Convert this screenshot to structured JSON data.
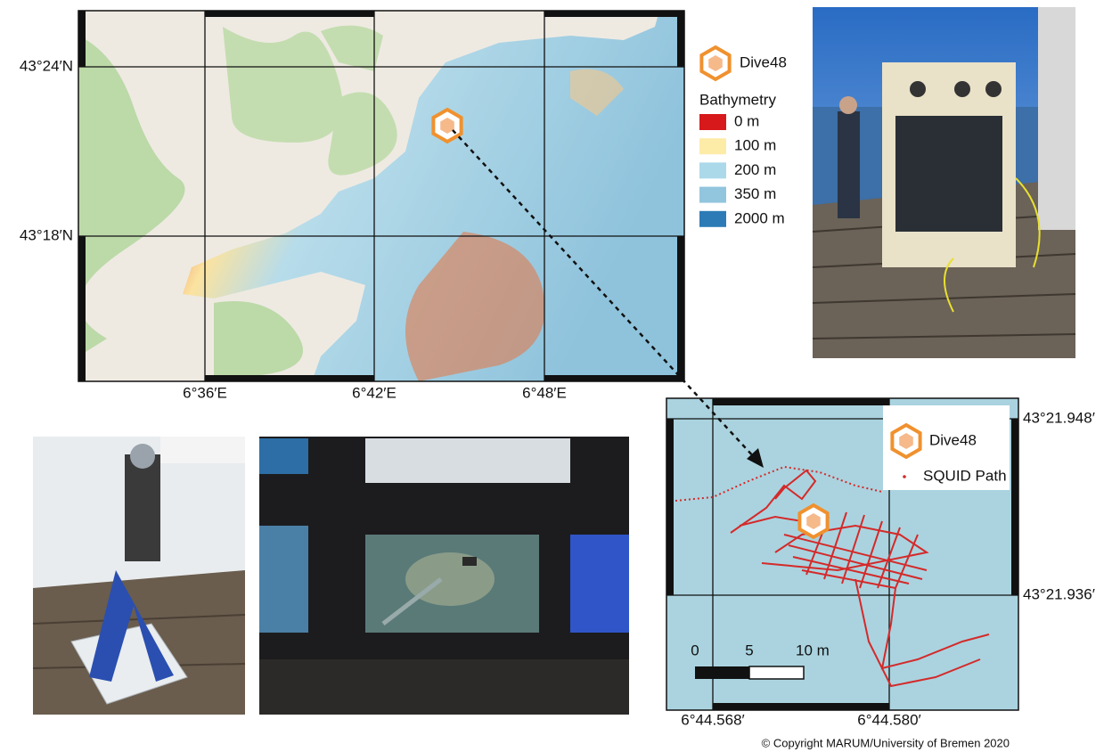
{
  "overview_map": {
    "lat_labels": [
      "43°24′N",
      "43°18′N"
    ],
    "lon_labels": [
      "6°36′E",
      "6°42′E",
      "6°48′E"
    ],
    "legend": {
      "marker": "Dive48",
      "title": "Bathymetry",
      "entries": [
        {
          "label": "0 m",
          "color": "#d7191c"
        },
        {
          "label": "100 m",
          "color": "#fdeba8"
        },
        {
          "label": "200 m",
          "color": "#abd9e9"
        },
        {
          "label": "350 m",
          "color": "#92c5de"
        },
        {
          "label": "2000 m",
          "color": "#2c7bb6"
        }
      ]
    }
  },
  "detail_map": {
    "lat_labels": [
      "43°21.948′",
      "43°21.936′"
    ],
    "lon_labels": [
      "6°44.568′",
      "6°44.580′"
    ],
    "legend": [
      "Dive48",
      "SQUID Path"
    ],
    "scale_labels": [
      "0",
      "5",
      "10 m"
    ]
  },
  "copyright": "© Copyright MARUM/University of Bremen 2020"
}
